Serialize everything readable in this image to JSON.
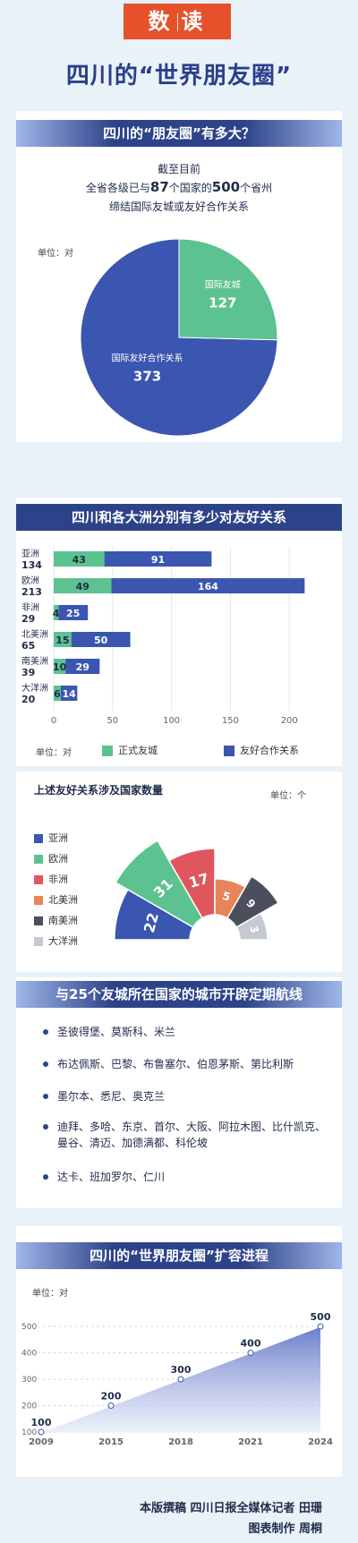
{
  "header": {
    "tag_left": "数",
    "tag_right": "读",
    "title": "四川的“世界朋友圈”"
  },
  "section1": {
    "title": "四川的“朋友圈”有多大？",
    "intro_line1": "截至目前",
    "intro_line2_pre": "全省各级已与",
    "intro_num1": "87",
    "intro_line2_mid": "个国家的",
    "intro_num2": "500",
    "intro_line2_post": "个省州",
    "intro_line3": "缔结国际友城或友好合作关系",
    "unit": "单位：对"
  },
  "section2": {
    "title": "四川和各大洲分别有多少对友好关系",
    "unit": "单位：对",
    "legend_formal": "正式友城",
    "legend_friendly": "友好合作关系"
  },
  "section3": {
    "title": "上述友好关系涉及国家数量",
    "unit": "单位：个"
  },
  "section4": {
    "title": "与25个友城所在国家的城市开辟定期航线",
    "routes": [
      "圣彼得堡、莫斯科、米兰",
      "布达佩斯、巴黎、布鲁塞尔、伯恩茅斯、第比利斯",
      "墨尔本、悉尼、奥克兰",
      "迪拜、多哈、东京、首尔、大阪、阿拉木图、比什凯克、曼谷、清迈、加德满都、科伦坡",
      "达卡、班加罗尔、仁川"
    ]
  },
  "section5": {
    "title": "四川的“世界朋友圈”扩容进程",
    "unit": "单位：对"
  },
  "footer": {
    "line1": "本版撰稿  四川日报全媒体记者  田珊",
    "line2": "图表制作  周桐"
  },
  "colors": {
    "navy": "#3a56b0",
    "green": "#5cc28f",
    "red": "#e0565f",
    "orange": "#e8845a",
    "dark": "#4a4f5e",
    "gray": "#c4c9d2",
    "header_red": "#e5512b"
  },
  "chart_data": [
    {
      "type": "pie",
      "slices": [
        {
          "label": "国际友好合作关系",
          "value": 373
        },
        {
          "label": "国际友城",
          "value": 127
        }
      ]
    },
    {
      "type": "bar",
      "orientation": "horizontal",
      "stacked": true,
      "categories": [
        "亚洲",
        "欧洲",
        "非洲",
        "北美洲",
        "南美洲",
        "大洋洲"
      ],
      "totals": [
        134,
        213,
        29,
        65,
        39,
        20
      ],
      "series": [
        {
          "name": "正式友城",
          "values": [
            43,
            49,
            4,
            15,
            10,
            6
          ]
        },
        {
          "name": "友好合作关系",
          "values": [
            91,
            164,
            25,
            50,
            29,
            14
          ]
        }
      ],
      "xlim": [
        0,
        215
      ],
      "xticks": [
        0,
        50,
        100,
        150,
        200
      ],
      "legend": "bottom"
    },
    {
      "type": "pie",
      "subtype": "rose",
      "title": "上述友好关系涉及国家数量",
      "slices": [
        {
          "label": "亚洲",
          "value": 22
        },
        {
          "label": "欧洲",
          "value": 31
        },
        {
          "label": "非洲",
          "value": 17
        },
        {
          "label": "北美洲",
          "value": 5
        },
        {
          "label": "南美洲",
          "value": 9
        },
        {
          "label": "大洋洲",
          "value": 3
        }
      ],
      "legend": "left"
    },
    {
      "type": "area",
      "x": [
        "2009",
        "2015",
        "2018",
        "2021",
        "2024"
      ],
      "values": [
        100,
        200,
        300,
        400,
        500
      ],
      "ylim": [
        100,
        500
      ],
      "yticks": [
        100,
        200,
        300,
        400,
        500
      ]
    }
  ]
}
